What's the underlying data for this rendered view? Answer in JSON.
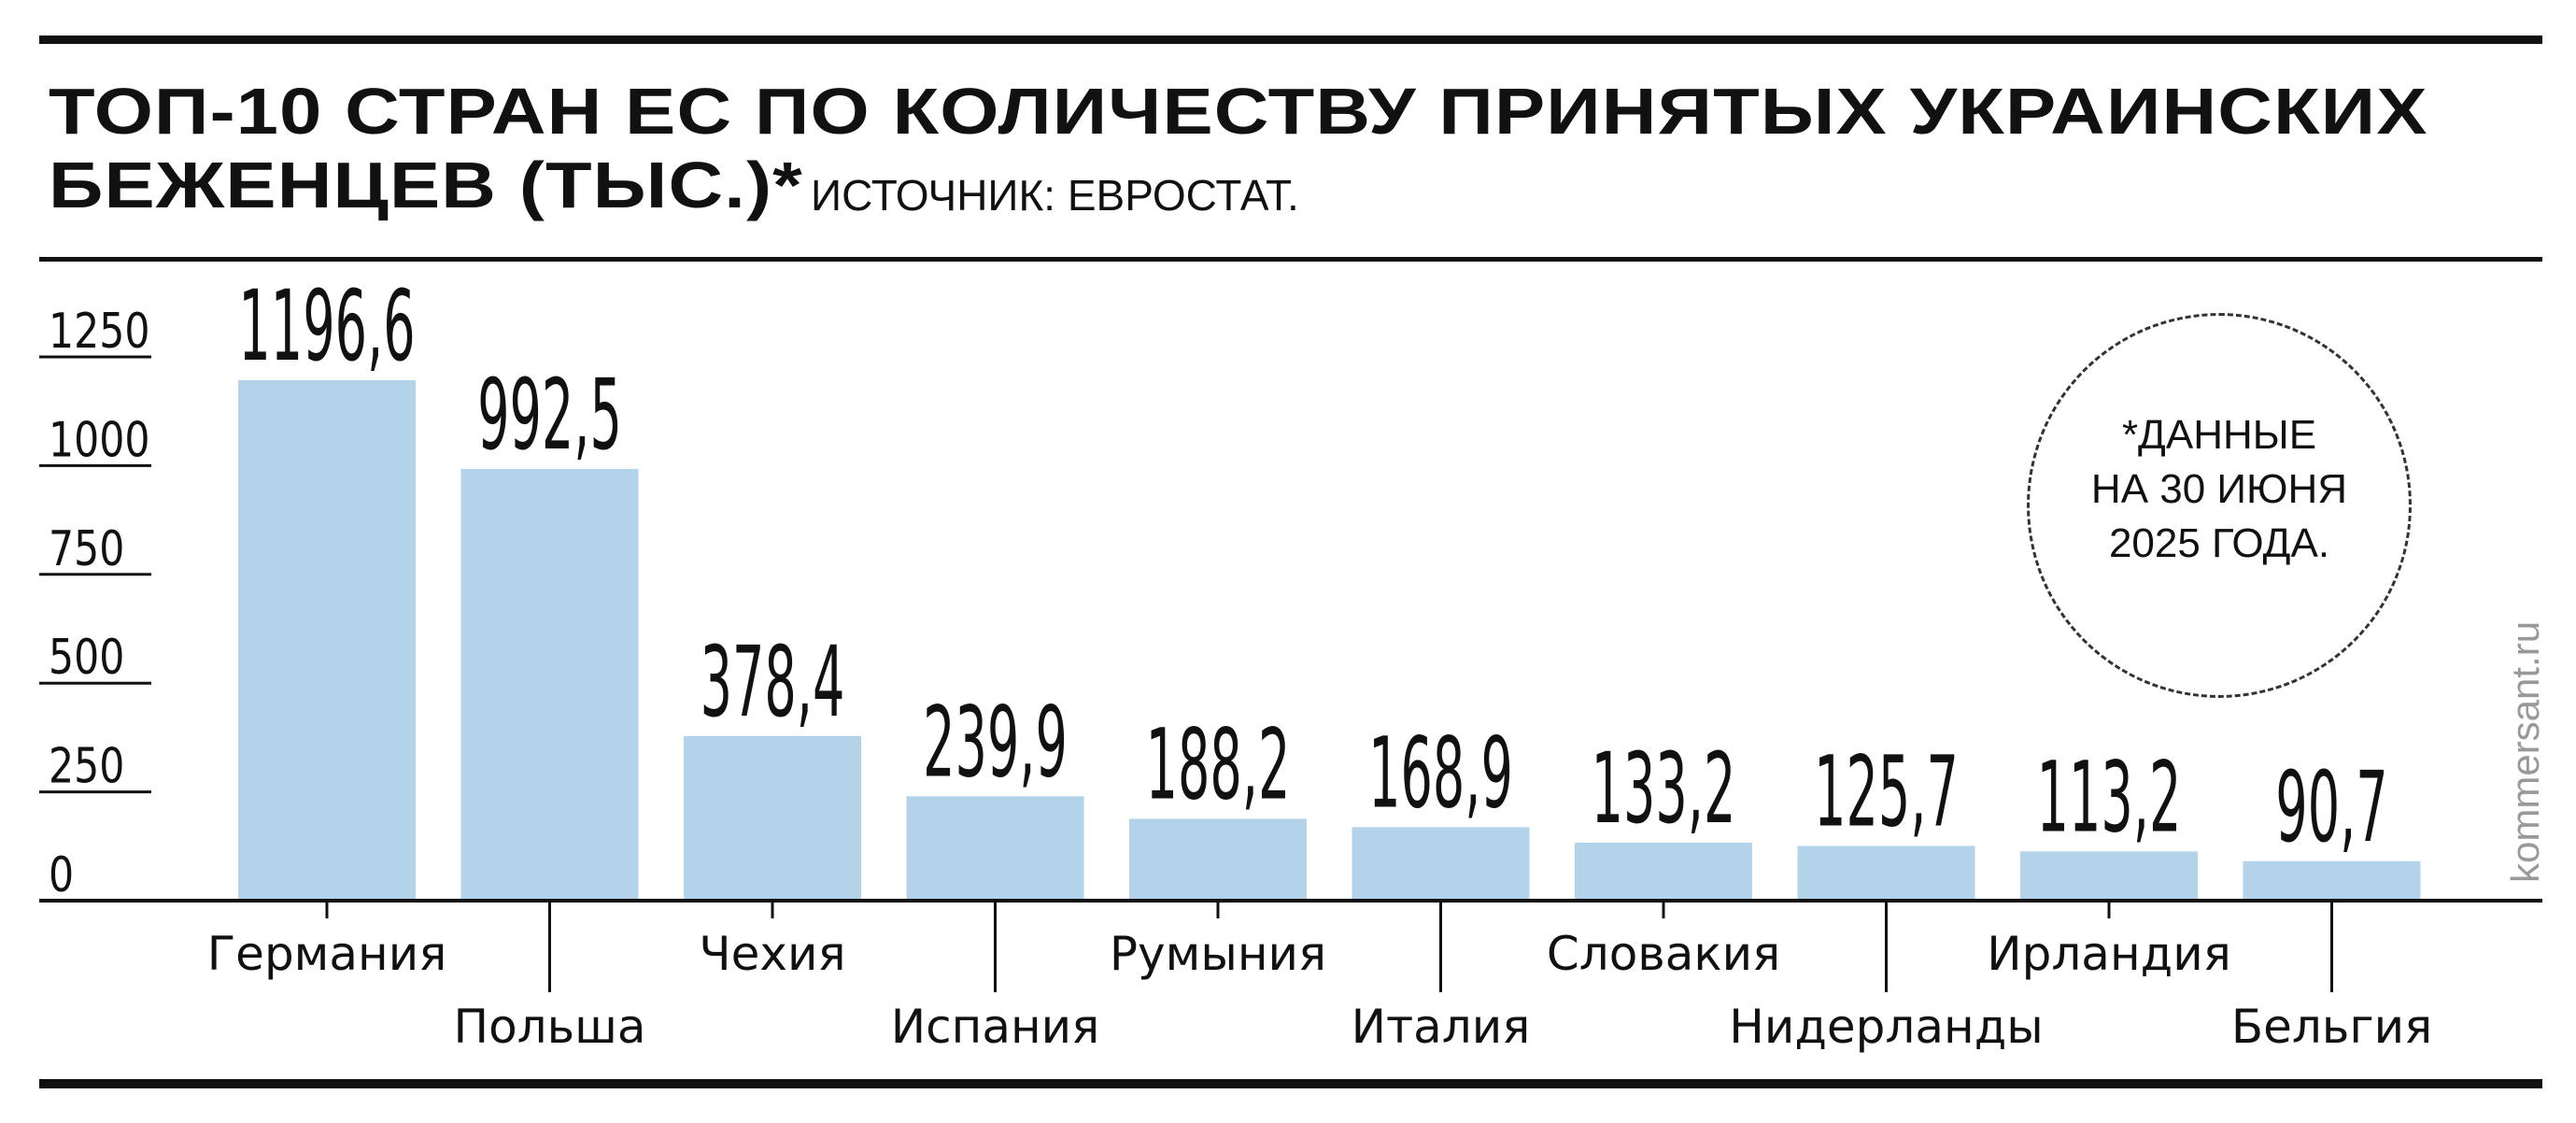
{
  "title_line1": "ТОП-10 СТРАН ЕС ПО КОЛИЧЕСТВУ ПРИНЯТЫХ УКРАИНСКИХ",
  "title_line2": "БЕЖЕНЦЕВ (ТЫС.)*",
  "source": "ИСТОЧНИК: ЕВРОСТАТ.",
  "note": [
    "*ДАННЫЕ",
    "НА 30 ИЮНЯ",
    "2025 ГОДА."
  ],
  "watermark": "kommersant.ru",
  "colors": {
    "bar": "#b3d3eb",
    "ink": "#111111",
    "watermark": "#999999"
  },
  "chart_data": {
    "type": "bar",
    "title": "ТОП-10 СТРАН ЕС ПО КОЛИЧЕСТВУ ПРИНЯТЫХ УКРАИНСКИХ БЕЖЕНЦЕВ (ТЫС.)*",
    "categories": [
      "Германия",
      "Польша",
      "Чехия",
      "Испания",
      "Румыния",
      "Италия",
      "Словакия",
      "Нидерланды",
      "Ирландия",
      "Бельгия"
    ],
    "values": [
      1196.6,
      992.5,
      378.4,
      239.9,
      188.2,
      168.9,
      133.2,
      125.7,
      113.2,
      90.7
    ],
    "value_labels": [
      "1196,6",
      "992,5",
      "378,4",
      "239,9",
      "188,2",
      "168,9",
      "133,2",
      "125,7",
      "113,2",
      "90,7"
    ],
    "yticks": [
      0,
      250,
      500,
      750,
      1000,
      1250
    ],
    "ylim": [
      0,
      1250
    ],
    "grid": false,
    "legend": "none"
  }
}
